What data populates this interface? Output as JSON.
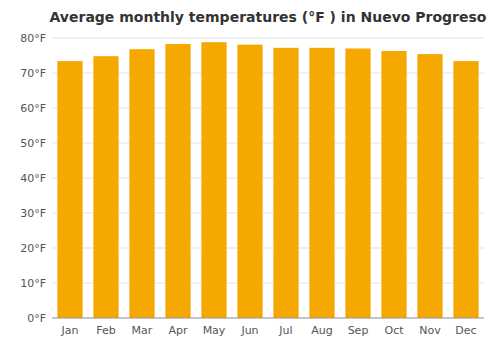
{
  "chart_data": {
    "type": "bar",
    "title": "Average monthly temperatures (°F ) in Nuevo Progreso",
    "categories": [
      "Jan",
      "Feb",
      "Mar",
      "Apr",
      "May",
      "Jun",
      "Jul",
      "Aug",
      "Sep",
      "Oct",
      "Nov",
      "Dec"
    ],
    "values": [
      73.4,
      74.8,
      76.8,
      78.3,
      78.8,
      78.1,
      77.2,
      77.2,
      77.0,
      76.3,
      75.4,
      73.4
    ],
    "color": "#F5A800",
    "ylim": [
      0,
      80
    ],
    "yticks": [
      {
        "value": 0,
        "label": "0°F"
      },
      {
        "value": 10,
        "label": "10°F"
      },
      {
        "value": 20,
        "label": "20°F"
      },
      {
        "value": 30,
        "label": "30°F"
      },
      {
        "value": 40,
        "label": "40°F"
      },
      {
        "value": 50,
        "label": "50°F"
      },
      {
        "value": 60,
        "label": "60°F"
      },
      {
        "value": 70,
        "label": "70°F"
      },
      {
        "value": 80,
        "label": "80°F"
      }
    ],
    "grid": true
  }
}
